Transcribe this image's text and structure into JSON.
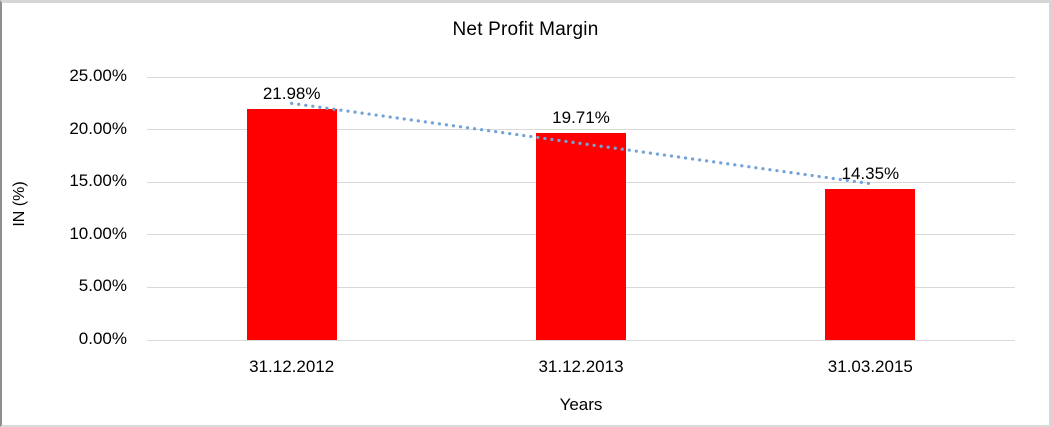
{
  "chart_data": {
    "type": "bar",
    "title": "Net Profit Margin",
    "categories": [
      "31.12.2012",
      "31.12.2013",
      "31.03.2015"
    ],
    "values": [
      21.98,
      19.71,
      14.35
    ],
    "data_labels": [
      "21.98%",
      "19.71%",
      "14.35%"
    ],
    "xlabel": "Years",
    "ylabel": "IN (%)",
    "ylim": [
      0,
      25
    ],
    "ytick_interval": 5,
    "ytick_labels": [
      "0.00%",
      "5.00%",
      "10.00%",
      "15.00%",
      "20.00%",
      "25.00%"
    ],
    "grid": true,
    "legend": "none",
    "bar_color": "#FF0000",
    "gridline_color": "#D9D9D9",
    "trendline": {
      "type": "linear",
      "style": "dotted",
      "color": "#74A3D6"
    }
  }
}
